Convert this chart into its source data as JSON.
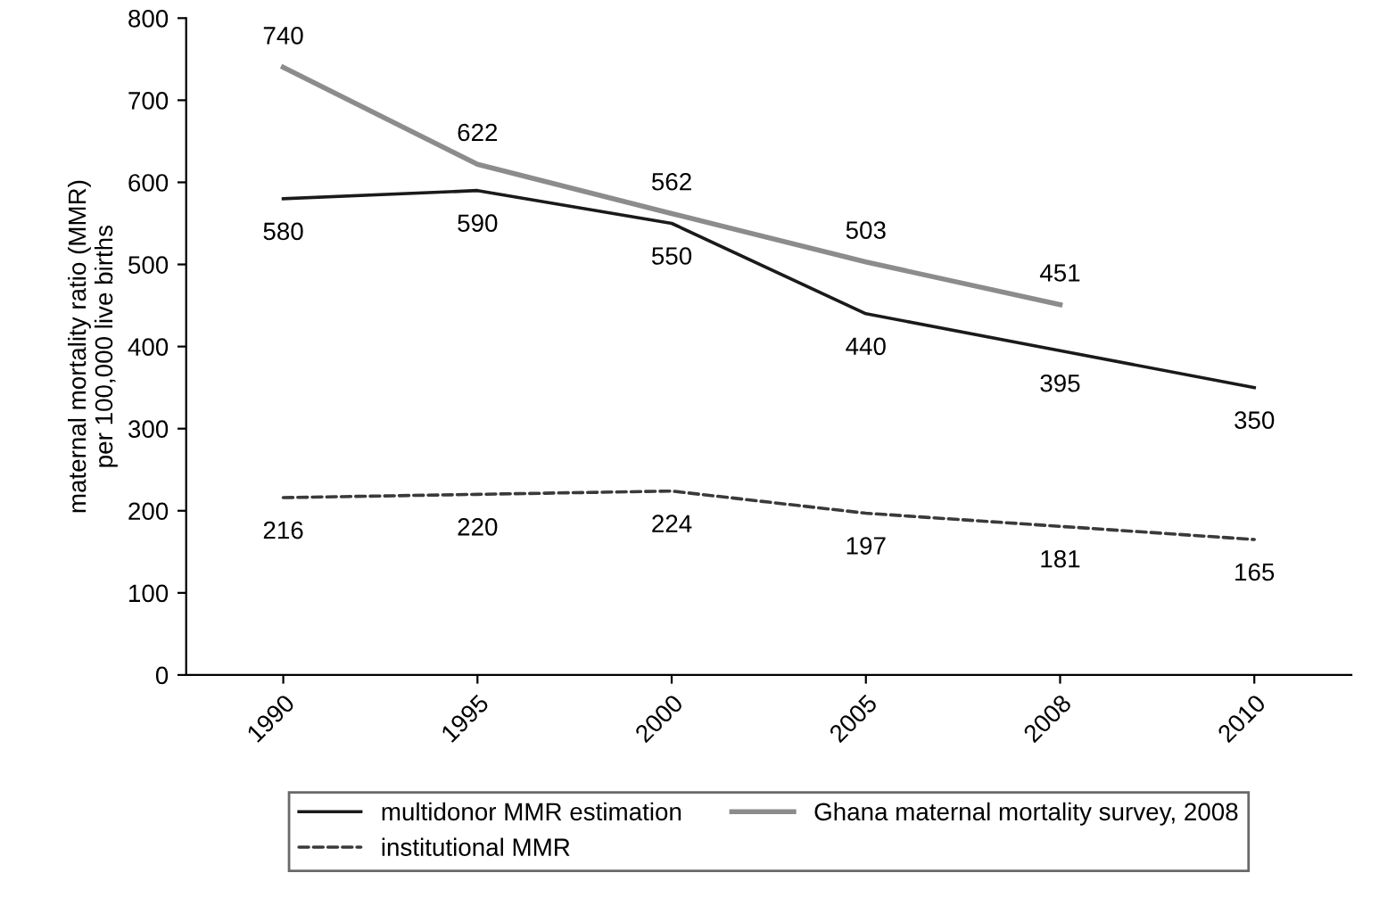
{
  "chart_data": {
    "type": "line",
    "ylabel": "maternal mortality ratio (MMR)\nper 100,000 live births",
    "categories": [
      "1990",
      "1995",
      "2000",
      "2005",
      "2008",
      "2010"
    ],
    "series": [
      {
        "name": "multidonor MMR estimation",
        "color": "#1a1a1a",
        "line_style": "solid",
        "values": [
          580,
          590,
          550,
          440,
          395,
          350
        ]
      },
      {
        "name": "Ghana maternal mortality survey, 2008",
        "color": "#8c8c8c",
        "line_style": "solid",
        "values": [
          740,
          622,
          562,
          503,
          451,
          null
        ]
      },
      {
        "name": "institutional MMR",
        "color": "#3a3a3a",
        "line_style": "dashed",
        "values": [
          216,
          220,
          224,
          197,
          181,
          165
        ]
      }
    ],
    "ylim": [
      0,
      800
    ],
    "yticks": [
      0,
      100,
      200,
      300,
      400,
      500,
      600,
      700,
      800
    ],
    "data_labels": true,
    "legend": "bottom",
    "grid": false,
    "marker": "none"
  }
}
